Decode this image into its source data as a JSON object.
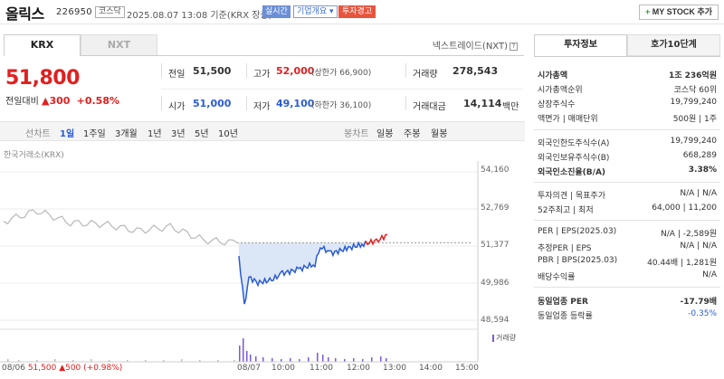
{
  "header": {
    "name": "올릭스",
    "code": "226950",
    "market_badge": "코스닥",
    "datetime": "2025.08.07 13:08 기준(KRX 장중)",
    "realtime": "실시간",
    "company_info": "기업개요 ▾",
    "warning": "투자경고",
    "mystock": "MY STOCK 추가",
    "mystock_plus": "+"
  },
  "tabs": {
    "krx": "KRX",
    "nxt": "NXT",
    "nxt_link": "넥스트레이드(NXT)",
    "help": "?"
  },
  "price": {
    "current": "51,800",
    "change_label": "전일대비",
    "change_arrow": "▲",
    "change_value": "300",
    "change_pct": "+0.58%"
  },
  "quotes": {
    "prev_label": "전일",
    "prev": "51,500",
    "high_label": "고가",
    "high": "52,000",
    "upper_limit": "(상한가 66,900)",
    "volume_label": "거래량",
    "volume": "278,543",
    "open_label": "시가",
    "open": "51,000",
    "low_label": "저가",
    "low": "49,100",
    "lower_limit": "(하한가 36,100)",
    "amount_label": "거래대금",
    "amount": "14,114",
    "amount_unit": "백만"
  },
  "period_bar": {
    "line_chart": "선차트",
    "d1": "1일",
    "w1": "1주일",
    "m3": "3개월",
    "y1": "1년",
    "y3": "3년",
    "y5": "5년",
    "y10": "10년",
    "candle": "봉차트",
    "daily": "일봉",
    "weekly": "주봉",
    "monthly": "월봉"
  },
  "chart": {
    "exchange": "한국거래소(KRX)",
    "y_ticks": [
      "54,160",
      "52,769",
      "51,377",
      "49,986",
      "48,594"
    ],
    "x_ticks": [
      "08/07",
      "10:00",
      "11:00",
      "12:00",
      "13:00",
      "14:00",
      "15:00"
    ],
    "foot_date": "08/06",
    "foot_price": "51,500",
    "foot_change": "▲500 (+0.98%)",
    "volume_legend": "거래량"
  },
  "chart_data": {
    "type": "line",
    "title": "",
    "y_range": [
      48594,
      54160
    ],
    "x_ticks": [
      "08/07",
      "10:00",
      "11:00",
      "12:00",
      "13:00",
      "14:00",
      "15:00"
    ],
    "reference_price": 51500,
    "series": [
      {
        "name": "",
        "x": [
          "08/06 09:00",
          "08/06 10:00",
          "08/06 11:00",
          "08/06 12:00",
          "08/06 13:00",
          "08/06 14:00",
          "08/06 15:00",
          "08/06 15:30"
        ],
        "values": [
          52300,
          52700,
          52250,
          52200,
          51950,
          52100,
          51600,
          51500
        ]
      },
      {
        "name": "",
        "x": [
          "08/07 09:00",
          "08/07 09:05",
          "08/07 09:10",
          "08/07 09:20",
          "08/07 09:40",
          "08/07 10:00",
          "08/07 10:30",
          "08/07 11:00",
          "08/07 11:10",
          "08/07 11:30",
          "08/07 12:00",
          "08/07 12:30",
          "08/07 13:00",
          "08/07 13:08"
        ],
        "values": [
          51000,
          49100,
          50200,
          50000,
          50100,
          50350,
          50500,
          50700,
          51350,
          51100,
          51300,
          51450,
          51600,
          51800
        ]
      }
    ]
  },
  "right": {
    "tab_info": "투자정보",
    "tab_orderbook": "호가10단계",
    "rows": [
      {
        "k": "시가총액",
        "v": "1조 236억원",
        "bold": true
      },
      {
        "k": "시가총액순위",
        "v": "코스닥 60위"
      },
      {
        "k": "상장주식수",
        "v": "19,799,240"
      },
      {
        "k": "액면가 | 매매단위",
        "v": "500원 | 1주"
      },
      {
        "k": "외국인한도주식수(A)",
        "v": "19,799,240"
      },
      {
        "k": "외국인보유주식수(B)",
        "v": "668,289"
      },
      {
        "k": "외국인소진율(B/A)",
        "v": "3.38%",
        "bold": true
      },
      {
        "k": "투자의견 | 목표주가",
        "v": "N/A | N/A"
      },
      {
        "k": "52주최고 | 최저",
        "v": "64,000 | 11,200"
      },
      {
        "k": "PER | EPS(2025.03)",
        "v": "N/A | -2,589원"
      },
      {
        "k": "추정PER | EPS",
        "v": "N/A | N/A"
      },
      {
        "k": "PBR | BPS(2025.03)",
        "v": "40.44배 | 1,281원"
      },
      {
        "k": "배당수익률",
        "v": "N/A"
      },
      {
        "k": "동일업종 PER",
        "v": "-17.79배",
        "bold": true
      },
      {
        "k": "동일업종 등락률",
        "v": "-0.35%",
        "blue": true
      }
    ]
  },
  "colors": {
    "up": "#e02020",
    "down": "#2a5bd6",
    "prev_line": "#999999",
    "volume": "#7b5ad6"
  }
}
